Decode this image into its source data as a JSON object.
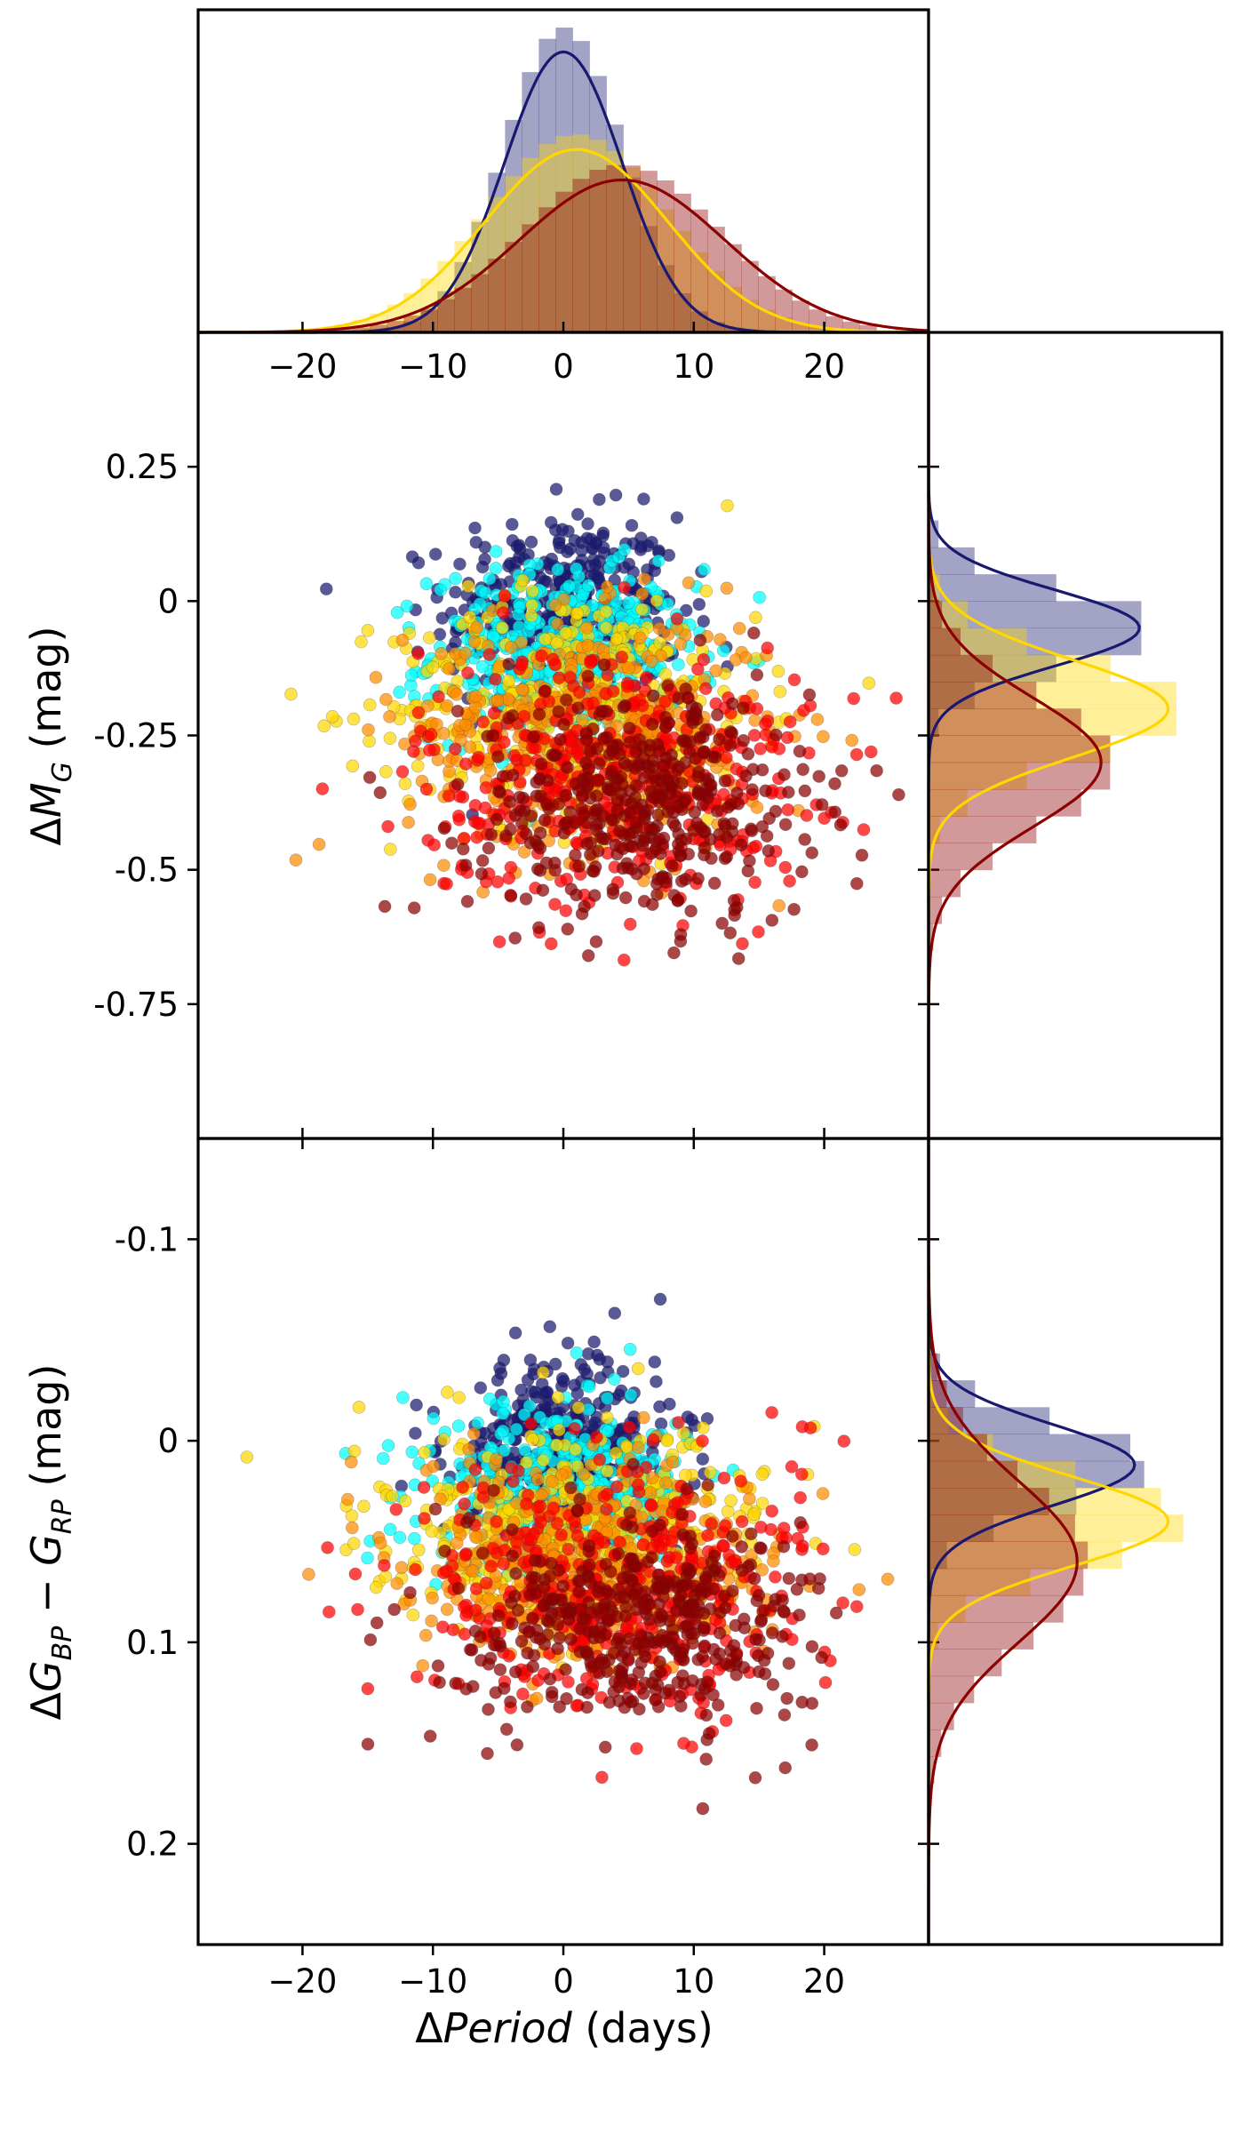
{
  "chart_data": {
    "type": "scatter",
    "title": "",
    "panels": [
      {
        "name": "period_histogram",
        "type": "histogram",
        "xlim": [
          -28,
          28
        ],
        "xticks": [
          -20,
          -10,
          0,
          10,
          20
        ],
        "xtick_labels": [
          "−20",
          "−10",
          "0",
          "10",
          "20"
        ],
        "groups": [
          {
            "color": "#191970",
            "peak": 0.0,
            "width": 4.5
          },
          {
            "color": "#ffd700",
            "peak": 1.0,
            "width": 7.0
          },
          {
            "color": "#8b0000",
            "peak": 4.5,
            "width": 7.5
          }
        ]
      },
      {
        "name": "magnitude_vs_period",
        "type": "scatter",
        "xlabel": "ΔPeriod (days)",
        "ylabel": "ΔM_G (mag)",
        "xlim": [
          -28,
          28
        ],
        "ylim": [
          0.5,
          -1.0
        ],
        "yticks": [
          -0.75,
          -0.5,
          -0.25,
          0,
          0.25
        ],
        "ytick_labels": [
          "-0.75",
          "-0.5",
          "-0.25",
          "0",
          "0.25"
        ],
        "xticks": [
          -20,
          -10,
          0,
          10,
          20
        ],
        "xtick_labels": [
          "−20",
          "−10",
          "0",
          "10",
          "20"
        ],
        "approx_points": 2500,
        "color_groups": [
          {
            "color": "#191970",
            "x_mean": 0.0,
            "x_sd": 4.5,
            "y_mean": -0.02,
            "y_sd": 0.09
          },
          {
            "color": "#00ffff",
            "x_mean": 0.0,
            "x_sd": 5.0,
            "y_mean": -0.1,
            "y_sd": 0.08
          },
          {
            "color": "#ffd700",
            "x_mean": 1.0,
            "x_sd": 7.0,
            "y_mean": -0.2,
            "y_sd": 0.11
          },
          {
            "color": "#ff8c00",
            "x_mean": 2.0,
            "x_sd": 7.0,
            "y_mean": -0.25,
            "y_sd": 0.11
          },
          {
            "color": "#ff0000",
            "x_mean": 4.0,
            "x_sd": 7.5,
            "y_mean": -0.32,
            "y_sd": 0.12
          },
          {
            "color": "#8b0000",
            "x_mean": 6.0,
            "x_sd": 6.5,
            "y_mean": -0.38,
            "y_sd": 0.11
          }
        ]
      },
      {
        "name": "magnitude_histogram",
        "type": "histogram",
        "orientation": "horizontal",
        "groups": [
          {
            "color": "#191970",
            "peak": -0.05,
            "width": 0.07
          },
          {
            "color": "#ffd700",
            "peak": -0.2,
            "width": 0.09
          },
          {
            "color": "#8b0000",
            "peak": -0.3,
            "width": 0.12
          }
        ]
      },
      {
        "name": "color_vs_period",
        "type": "scatter",
        "xlabel": "ΔPeriod (days)",
        "ylabel": "ΔG_BP − G_RP (mag)",
        "xlim": [
          -28,
          28
        ],
        "ylim": [
          -0.15,
          0.25
        ],
        "yticks": [
          -0.1,
          0,
          0.1,
          0.2
        ],
        "ytick_labels": [
          "-0.1",
          "0",
          "0.1",
          "0.2"
        ],
        "xticks": [
          -20,
          -10,
          0,
          10,
          20
        ],
        "xtick_labels": [
          "−20",
          "−10",
          "0",
          "10",
          "20"
        ],
        "approx_points": 2500,
        "color_groups": [
          {
            "color": "#191970",
            "x_mean": 0.0,
            "x_sd": 4.5,
            "y_mean": 0.005,
            "y_sd": 0.022
          },
          {
            "color": "#00ffff",
            "x_mean": 0.0,
            "x_sd": 5.0,
            "y_mean": 0.025,
            "y_sd": 0.02
          },
          {
            "color": "#ffd700",
            "x_mean": 1.0,
            "x_sd": 7.0,
            "y_mean": 0.045,
            "y_sd": 0.025
          },
          {
            "color": "#ff8c00",
            "x_mean": 2.0,
            "x_sd": 7.0,
            "y_mean": 0.06,
            "y_sd": 0.025
          },
          {
            "color": "#ff0000",
            "x_mean": 4.0,
            "x_sd": 7.5,
            "y_mean": 0.075,
            "y_sd": 0.03
          },
          {
            "color": "#8b0000",
            "x_mean": 6.0,
            "x_sd": 6.5,
            "y_mean": 0.09,
            "y_sd": 0.028
          }
        ]
      },
      {
        "name": "color_histogram",
        "type": "histogram",
        "orientation": "horizontal",
        "groups": [
          {
            "color": "#191970",
            "peak": 0.012,
            "width": 0.02
          },
          {
            "color": "#ffd700",
            "peak": 0.04,
            "width": 0.022
          },
          {
            "color": "#8b0000",
            "peak": 0.06,
            "width": 0.04
          }
        ]
      }
    ]
  },
  "labels": {
    "y_top_delta": "Δ",
    "y_top_main": "M",
    "y_top_sub": "G",
    "y_top_unit": " (mag)",
    "y_bottom_delta": "Δ",
    "y_bottom_g1": "G",
    "y_bottom_sub1": "BP",
    "y_bottom_minus": " − ",
    "y_bottom_g2": "G",
    "y_bottom_sub2": "RP",
    "y_bottom_unit": " (mag)",
    "x_delta": "Δ",
    "x_main": "Period",
    "x_unit": " (days)"
  }
}
